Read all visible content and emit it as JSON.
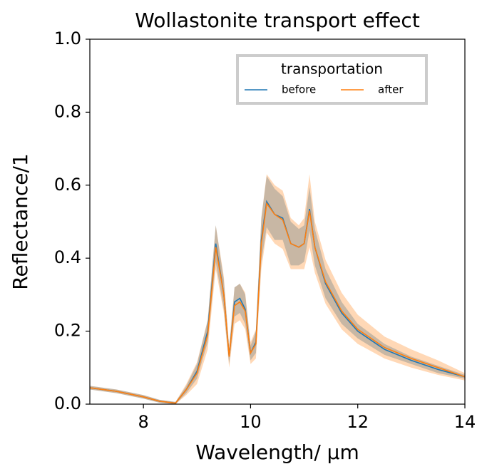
{
  "chart_data": {
    "type": "line",
    "title": "Wollastonite transport effect",
    "x_label": "Wavelength/ µm",
    "y_label": "Reflectance/1",
    "legend_title": "transportation",
    "legend": "upper right",
    "x": [
      7.0,
      7.5,
      8.0,
      8.3,
      8.6,
      8.8,
      9.0,
      9.2,
      9.35,
      9.5,
      9.6,
      9.7,
      9.8,
      9.9,
      10.0,
      10.1,
      10.2,
      10.3,
      10.45,
      10.6,
      10.75,
      10.9,
      11.0,
      11.1,
      11.2,
      11.4,
      11.7,
      12.0,
      12.5,
      13.0,
      13.5,
      14.0
    ],
    "series": [
      {
        "name": "before",
        "color": "#1f77b4",
        "values": [
          0.045,
          0.035,
          0.02,
          0.008,
          0.003,
          0.04,
          0.09,
          0.2,
          0.44,
          0.3,
          0.13,
          0.28,
          0.29,
          0.26,
          0.14,
          0.17,
          0.45,
          0.555,
          0.52,
          0.51,
          0.44,
          0.43,
          0.44,
          0.535,
          0.43,
          0.33,
          0.25,
          0.2,
          0.15,
          0.12,
          0.095,
          0.075
        ],
        "error": [
          0.005,
          0.005,
          0.005,
          0.004,
          0.003,
          0.01,
          0.02,
          0.03,
          0.05,
          0.04,
          0.02,
          0.04,
          0.04,
          0.04,
          0.02,
          0.03,
          0.06,
          0.07,
          0.07,
          0.06,
          0.06,
          0.05,
          0.05,
          0.06,
          0.05,
          0.04,
          0.03,
          0.02,
          0.015,
          0.01,
          0.01,
          0.005
        ]
      },
      {
        "name": "after",
        "color": "#ff7f0e",
        "values": [
          0.045,
          0.035,
          0.02,
          0.008,
          0.003,
          0.04,
          0.085,
          0.19,
          0.43,
          0.3,
          0.13,
          0.27,
          0.28,
          0.255,
          0.14,
          0.165,
          0.44,
          0.55,
          0.52,
          0.505,
          0.44,
          0.43,
          0.44,
          0.53,
          0.43,
          0.335,
          0.255,
          0.205,
          0.155,
          0.125,
          0.1,
          0.075
        ],
        "error": [
          0.005,
          0.005,
          0.005,
          0.004,
          0.003,
          0.015,
          0.03,
          0.04,
          0.06,
          0.05,
          0.03,
          0.05,
          0.05,
          0.05,
          0.03,
          0.04,
          0.07,
          0.08,
          0.08,
          0.08,
          0.07,
          0.06,
          0.07,
          0.1,
          0.07,
          0.06,
          0.05,
          0.04,
          0.03,
          0.025,
          0.02,
          0.01
        ]
      }
    ],
    "xlim": [
      7,
      14
    ],
    "xticks": [
      8,
      10,
      12,
      14
    ],
    "ylim": [
      0,
      1
    ],
    "yticks": [
      {
        "value": 0,
        "label": "0.0"
      },
      0.2,
      0.4,
      0.6,
      0.8,
      {
        "value": 1,
        "label": "1.0"
      }
    ]
  }
}
